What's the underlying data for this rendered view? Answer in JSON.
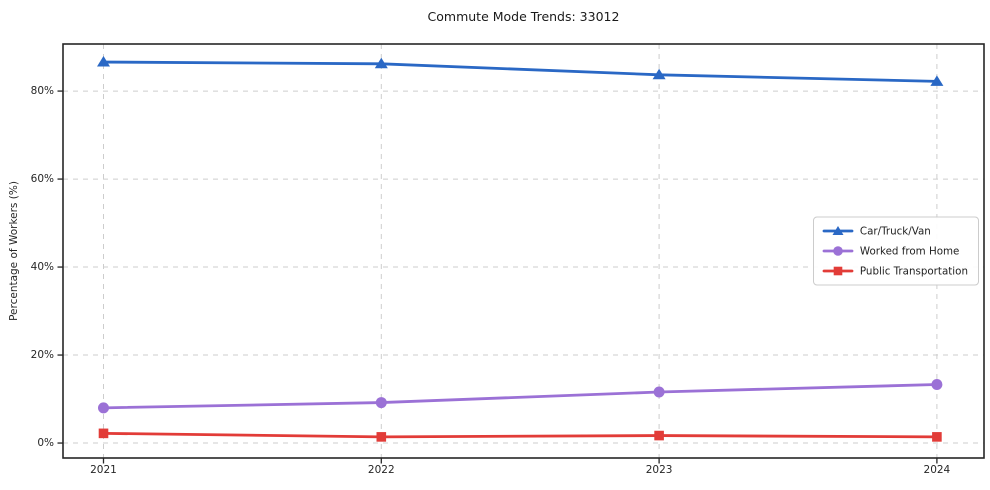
{
  "chart_data": {
    "type": "line",
    "title": "Commute Mode Trends: 33012",
    "xlabel": "",
    "ylabel": "Percentage of Workers (%)",
    "categories": [
      "2021",
      "2022",
      "2023",
      "2024"
    ],
    "series": [
      {
        "name": "Car/Truck/Van",
        "marker": "triangle",
        "color": "#2a68c5",
        "values": [
          86.6,
          86.2,
          83.7,
          82.2
        ]
      },
      {
        "name": "Worked from Home",
        "marker": "circle",
        "color": "#9b71d6",
        "values": [
          8.0,
          9.2,
          11.6,
          13.3
        ]
      },
      {
        "name": "Public Transportation",
        "marker": "square",
        "color": "#e23c38",
        "values": [
          2.2,
          1.4,
          1.7,
          1.4
        ]
      }
    ],
    "yticks": {
      "values": [
        0,
        20,
        40,
        60,
        80
      ],
      "labels": [
        "0%",
        "20%",
        "40%",
        "60%",
        "80%"
      ]
    },
    "ylim": [
      -3.4,
      90.7
    ],
    "grid": {
      "visible": true,
      "style": "dashed",
      "color": "#cdcdcd"
    },
    "legend": {
      "position": "center-right",
      "entries": [
        "Car/Truck/Van",
        "Worked from Home",
        "Public Transportation"
      ]
    },
    "spine_color": "#262626"
  }
}
